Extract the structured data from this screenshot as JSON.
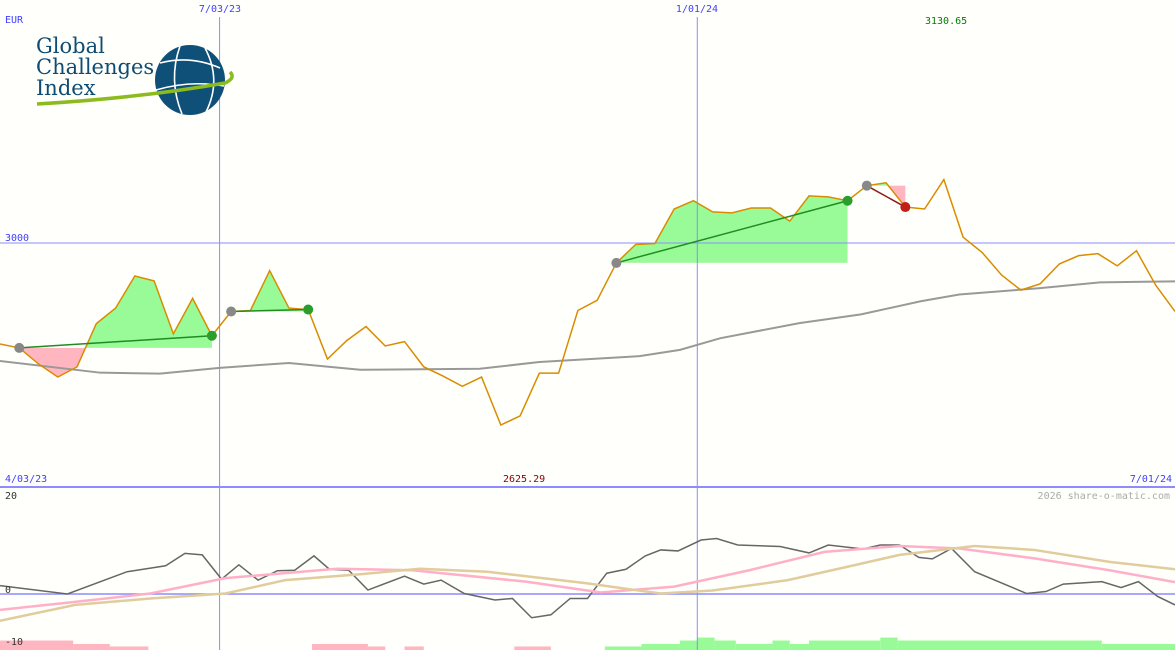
{
  "header": {
    "currency": "EUR",
    "high_label": "3130.65",
    "low_label": "2625.29",
    "copyright": "2026 share-o-matic.com"
  },
  "logo": {
    "lines": [
      "Global",
      "Challenges",
      "Index"
    ]
  },
  "colors": {
    "price": "#d98c00",
    "ma": "#999999",
    "grid": "#8c8cff",
    "gain": "#98fb98",
    "loss": "#ffb6c1",
    "trend_gain": "#228b22",
    "trend_loss": "#8b1a1a",
    "high": "#008000",
    "low": "#8b0000",
    "osc": "#666666",
    "osc_fast": "#ffb0c8",
    "osc_slow": "#e0cc9c"
  },
  "chart_data": [
    {
      "type": "line",
      "title": "",
      "yunit": "EUR",
      "ylim": [
        2600,
        3160
      ],
      "y_gridlines": [
        {
          "value": 3000,
          "label": "3000"
        }
      ],
      "x_ticks": [
        {
          "index": 0,
          "label": "4/03/23"
        },
        {
          "index": 11.4,
          "label": "7/03/23"
        },
        {
          "index": 36.2,
          "label": "1/01/24"
        },
        {
          "index": 61,
          "label": "7/01/24"
        }
      ],
      "high": {
        "index": 49,
        "value": 3130.65,
        "label": "3130.65"
      },
      "low": {
        "index": 26,
        "value": 2625.29,
        "label": "2625.29"
      },
      "price": [
        2792,
        2784,
        2751,
        2724,
        2745,
        2834,
        2866,
        2932,
        2922,
        2813,
        2886,
        2809,
        2859,
        2861,
        2943,
        2866,
        2863,
        2761,
        2799,
        2828,
        2788,
        2797,
        2745,
        2726,
        2705,
        2724,
        2625.29,
        2644,
        2732,
        2732,
        2861,
        2882,
        2959,
        2997,
        2999,
        3070,
        3087,
        3064,
        3062,
        3072,
        3072,
        3045,
        3097,
        3095,
        3087,
        3118,
        3124,
        3074,
        3070,
        3130.65,
        3012,
        2980,
        2934,
        2903,
        2916,
        2957,
        2974,
        2978,
        2953,
        2984,
        2913,
        2859
      ],
      "moving_average": [
        [
          0,
          2757
        ],
        [
          5.2,
          2733
        ],
        [
          8.3,
          2731
        ],
        [
          11.4,
          2743
        ],
        [
          15,
          2753
        ],
        [
          18.7,
          2739
        ],
        [
          24.9,
          2741
        ],
        [
          28,
          2755
        ],
        [
          33.2,
          2767
        ],
        [
          35.3,
          2780
        ],
        [
          37.4,
          2804
        ],
        [
          41.5,
          2835
        ],
        [
          44.7,
          2853
        ],
        [
          47.8,
          2880
        ],
        [
          49.8,
          2894
        ],
        [
          54,
          2907
        ],
        [
          57.1,
          2919
        ],
        [
          61,
          2921
        ]
      ],
      "trades": [
        {
          "entry": 1,
          "exit": 11,
          "result": "gain"
        },
        {
          "entry": 12,
          "exit": 16,
          "result": "gain"
        },
        {
          "entry": 32,
          "exit": 44,
          "result": "gain"
        },
        {
          "entry": 45,
          "exit": 47,
          "result": "loss"
        }
      ]
    },
    {
      "type": "line",
      "title": "",
      "ylim": [
        -11.3,
        25
      ],
      "y_ticks": [
        {
          "value": 20,
          "label": "20"
        },
        {
          "value": 0,
          "label": "0"
        },
        {
          "value": -10,
          "label": "-10"
        }
      ],
      "series": [
        {
          "key": "osc",
          "points": [
            [
              0,
              1.7
            ],
            [
              3.5,
              0
            ],
            [
              6.6,
              4.5
            ],
            [
              8.6,
              5.7
            ],
            [
              9.6,
              8.2
            ],
            [
              10.5,
              7.9
            ],
            [
              11.5,
              3.0
            ],
            [
              12.4,
              5.9
            ],
            [
              13.4,
              2.8
            ],
            [
              14.4,
              4.7
            ],
            [
              15.3,
              4.8
            ],
            [
              16.3,
              7.7
            ],
            [
              17.1,
              5.0
            ],
            [
              18.1,
              4.8
            ],
            [
              19.1,
              0.8
            ],
            [
              21,
              3.6
            ],
            [
              22,
              2.0
            ],
            [
              22.9,
              2.8
            ],
            [
              24.1,
              0.1
            ],
            [
              25.7,
              -1.2
            ],
            [
              26.6,
              -0.9
            ],
            [
              27.6,
              -4.8
            ],
            [
              28.6,
              -4.2
            ],
            [
              29.6,
              -0.9
            ],
            [
              30.5,
              -0.9
            ],
            [
              31.5,
              4.2
            ],
            [
              32.5,
              5.0
            ],
            [
              33.5,
              7.7
            ],
            [
              34.3,
              8.9
            ],
            [
              35.2,
              8.7
            ],
            [
              36.4,
              10.9
            ],
            [
              37.2,
              11.2
            ],
            [
              38.3,
              9.9
            ],
            [
              40.5,
              9.6
            ],
            [
              42,
              8.3
            ],
            [
              43,
              9.9
            ],
            [
              44.8,
              9.1
            ],
            [
              45.7,
              9.9
            ],
            [
              46.7,
              9.9
            ],
            [
              47.7,
              7.4
            ],
            [
              48.4,
              7.1
            ],
            [
              49.4,
              9.2
            ],
            [
              50.6,
              4.5
            ],
            [
              53.3,
              0.1
            ],
            [
              54.3,
              0.5
            ],
            [
              55.2,
              2.0
            ],
            [
              57.2,
              2.5
            ],
            [
              58.2,
              1.3
            ],
            [
              59.1,
              2.5
            ],
            [
              60.1,
              -0.5
            ],
            [
              61,
              -2.2
            ]
          ]
        },
        {
          "key": "osc_fast",
          "points": [
            [
              0,
              -3.2
            ],
            [
              3.9,
              -1.6
            ],
            [
              7.8,
              0.1
            ],
            [
              11.7,
              3.2
            ],
            [
              17.5,
              5.1
            ],
            [
              21.4,
              4.8
            ],
            [
              27.3,
              2.5
            ],
            [
              31.2,
              0.3
            ],
            [
              35,
              1.5
            ],
            [
              38.9,
              4.8
            ],
            [
              42.8,
              8.5
            ],
            [
              46.7,
              9.7
            ],
            [
              49.8,
              9.2
            ],
            [
              53.7,
              7.2
            ],
            [
              57.6,
              4.8
            ],
            [
              61,
              2.4
            ]
          ]
        },
        {
          "key": "osc_slow",
          "points": [
            [
              0,
              -5.4
            ],
            [
              3.9,
              -2.2
            ],
            [
              7.8,
              -0.9
            ],
            [
              11.7,
              0.1
            ],
            [
              14.8,
              2.8
            ],
            [
              18.7,
              4.0
            ],
            [
              21.8,
              5.1
            ],
            [
              25.3,
              4.5
            ],
            [
              30.4,
              2.2
            ],
            [
              34.3,
              0.1
            ],
            [
              37,
              0.7
            ],
            [
              40.9,
              2.8
            ],
            [
              44,
              5.5
            ],
            [
              46.7,
              7.9
            ],
            [
              50.6,
              9.7
            ],
            [
              53.7,
              8.9
            ],
            [
              57.6,
              6.5
            ],
            [
              61,
              5.0
            ]
          ]
        }
      ],
      "histogram": [
        {
          "from": 0,
          "to": 3.8,
          "value": -9.4,
          "sign": "neg"
        },
        {
          "from": 3.8,
          "to": 5.7,
          "value": -10.1,
          "sign": "neg"
        },
        {
          "from": 5.7,
          "to": 7.7,
          "value": -10.6,
          "sign": "neg"
        },
        {
          "from": 16.2,
          "to": 19.1,
          "value": -10.1,
          "sign": "neg"
        },
        {
          "from": 19.1,
          "to": 20,
          "value": -10.6,
          "sign": "neg"
        },
        {
          "from": 21,
          "to": 22,
          "value": -10.6,
          "sign": "neg"
        },
        {
          "from": 26.7,
          "to": 28.6,
          "value": -10.6,
          "sign": "neg"
        },
        {
          "from": 31.4,
          "to": 33.3,
          "value": -10.6,
          "sign": "pos"
        },
        {
          "from": 33.3,
          "to": 35.3,
          "value": -10.1,
          "sign": "pos"
        },
        {
          "from": 35.3,
          "to": 36.2,
          "value": -9.4,
          "sign": "pos"
        },
        {
          "from": 36.2,
          "to": 37.1,
          "value": -8.8,
          "sign": "pos"
        },
        {
          "from": 37.1,
          "to": 38.2,
          "value": -9.4,
          "sign": "pos"
        },
        {
          "from": 38.2,
          "to": 40.1,
          "value": -10.1,
          "sign": "pos"
        },
        {
          "from": 40.1,
          "to": 41,
          "value": -9.4,
          "sign": "pos"
        },
        {
          "from": 41,
          "to": 42,
          "value": -10.1,
          "sign": "pos"
        },
        {
          "from": 42,
          "to": 45.7,
          "value": -9.4,
          "sign": "pos"
        },
        {
          "from": 45.7,
          "to": 46.6,
          "value": -8.8,
          "sign": "pos"
        },
        {
          "from": 46.6,
          "to": 57.2,
          "value": -9.4,
          "sign": "pos"
        },
        {
          "from": 57.2,
          "to": 61,
          "value": -10.1,
          "sign": "pos"
        }
      ]
    }
  ]
}
